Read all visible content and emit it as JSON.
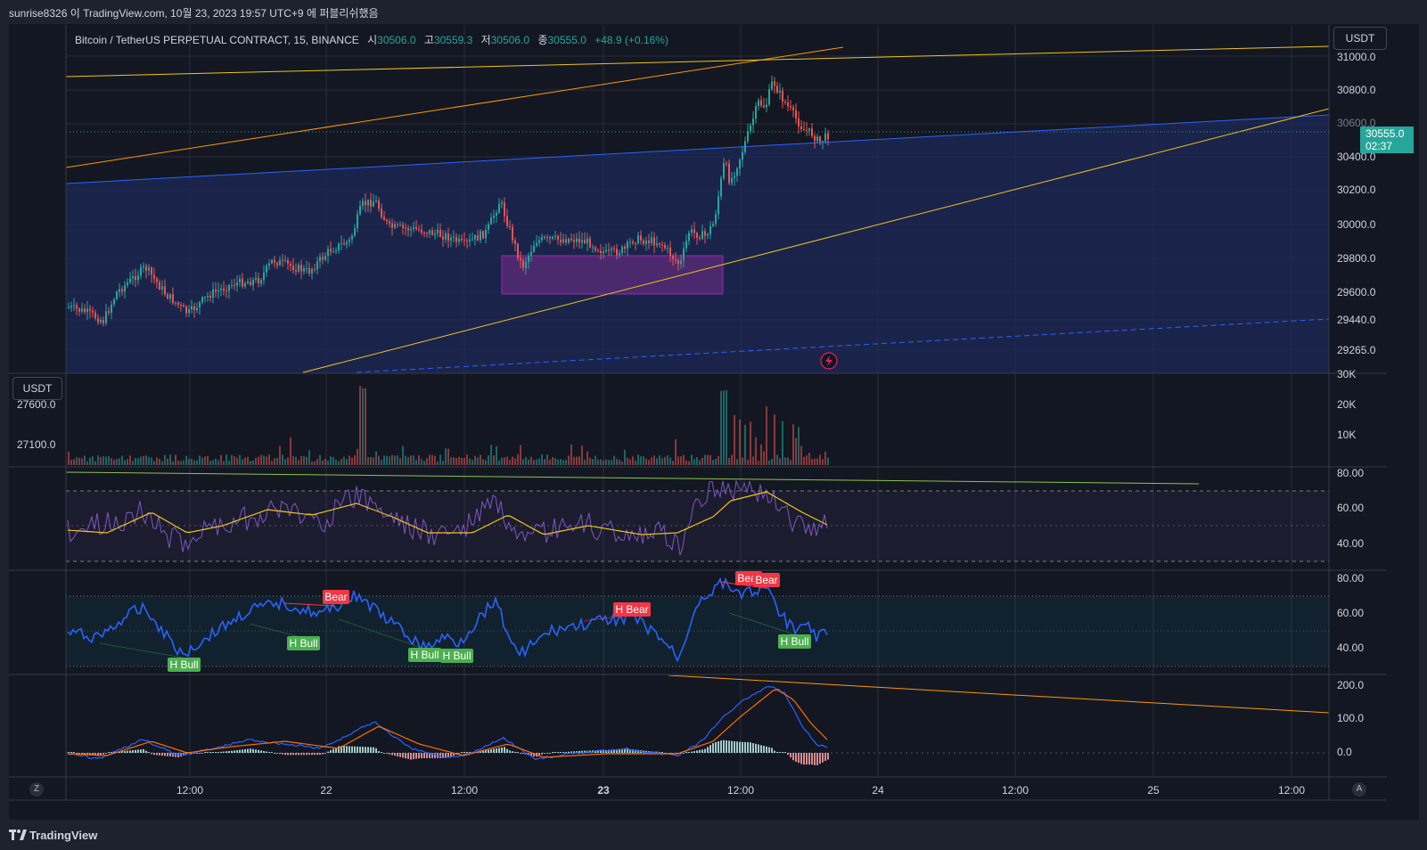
{
  "header": {
    "title": "sunrise8326 이 TradingView.com, 10월 23, 2023 19:57 UTC+9 에 퍼블리쉬했음"
  },
  "legend": {
    "symbol": "Bitcoin / TetherUS PERPETUAL CONTRACT, 15, BINANCE",
    "open_label": "시",
    "open": "30506.0",
    "high_label": "고",
    "high": "30559.3",
    "low_label": "저",
    "low": "30506.0",
    "close_label": "종",
    "close": "30555.0",
    "change": "+48.9 (+0.16%)"
  },
  "currency_button": "USDT",
  "left_currency_button": "USDT",
  "price_tag": {
    "price": "30555.0",
    "countdown": "02:37"
  },
  "colors": {
    "up": "#26a69a",
    "down": "#ef5350",
    "rsi": "#7e57c2",
    "rsi_ma": "#f0c419",
    "blue_rsi": "#2962ff",
    "macd": "#2962ff",
    "signal": "#ff6d00",
    "bull": "#4caf50",
    "bear": "#f23645"
  },
  "price_axis": [
    "31000.0",
    "30800.0",
    "30600.0",
    "30400.0",
    "30200.0",
    "30000.0",
    "29800.0",
    "29600.0",
    "29440.0",
    "29265.0"
  ],
  "left_axis": [
    "27600.0",
    "27100.0"
  ],
  "volume_axis": [
    "30K",
    "20K",
    "10K"
  ],
  "rsi_axis": [
    "80.00",
    "60.00",
    "40.00"
  ],
  "rsi2_axis": [
    "80.00",
    "60.00",
    "40.00"
  ],
  "macd_axis": [
    "200.0",
    "100.0",
    "0.0"
  ],
  "time_axis": [
    "12:00",
    "22",
    "12:00",
    "23",
    "12:00",
    "24",
    "12:00",
    "25",
    "12:00"
  ],
  "divergence_labels": {
    "bear": [
      "Bear",
      "H Bear",
      "Bear",
      "Bear"
    ],
    "bull": [
      "H Bull",
      "H Bull",
      "H Bull",
      "H Bull",
      "H Bull"
    ]
  },
  "bottom": {
    "brand": "TradingView",
    "z_button": "Z",
    "a_button": "A",
    "alert_icon": "lightning-icon"
  }
}
